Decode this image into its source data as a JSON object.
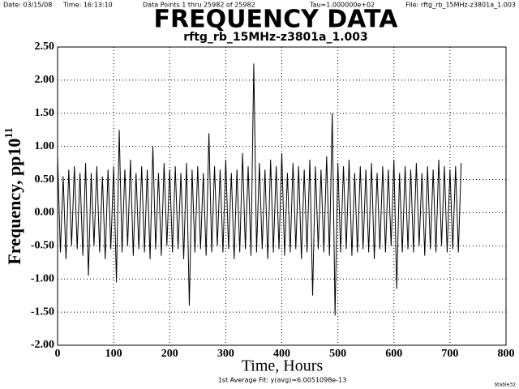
{
  "chart_data": {
    "type": "line",
    "header": {
      "date": "Date: 03/15/08",
      "time": "Time: 16:13:10",
      "points": "Data Points 1 thru 25982 of 25982",
      "tau": "Tau=1.000000e+02",
      "file": "File: rftg_rb_15MHz-z3801a_1.003"
    },
    "title": "FREQUENCY DATA",
    "subtitle": "rftg_rb_15MHz-z3801a_1.003",
    "ylabel": "Frequency, pp10",
    "ylabel_exponent": "11",
    "xlabel": "Time, Hours",
    "footer": "1st Average Fit: y(avg)=6.0051098e-13",
    "corner": "Stable32",
    "grid": true,
    "xlim": [
      0,
      800
    ],
    "xticks": [
      0,
      100,
      200,
      300,
      400,
      500,
      600,
      700,
      800
    ],
    "ylim": [
      -2.0,
      2.5
    ],
    "yticks": [
      {
        "value": -2.0,
        "label": "-2.00"
      },
      {
        "value": -1.5,
        "label": "-1.50"
      },
      {
        "value": -1.0,
        "label": "-1.00"
      },
      {
        "value": -0.5,
        "label": "-0.50"
      },
      {
        "value": 0,
        "label": "0.00"
      },
      {
        "value": 0.5,
        "label": "0.50"
      },
      {
        "value": 1.0,
        "label": "1.00"
      },
      {
        "value": 1.5,
        "label": "1.50"
      },
      {
        "value": 2.0,
        "label": "2.00"
      },
      {
        "value": 2.5,
        "label": "2.50"
      }
    ],
    "x": [
      0,
      5,
      10,
      15,
      20,
      25,
      30,
      35,
      40,
      45,
      50,
      55,
      60,
      65,
      70,
      75,
      80,
      85,
      90,
      95,
      100,
      105,
      110,
      115,
      120,
      125,
      130,
      135,
      140,
      145,
      150,
      155,
      160,
      165,
      170,
      175,
      180,
      185,
      190,
      195,
      200,
      205,
      210,
      215,
      220,
      225,
      230,
      235,
      240,
      245,
      250,
      255,
      260,
      265,
      270,
      275,
      280,
      285,
      290,
      295,
      300,
      305,
      310,
      315,
      320,
      325,
      330,
      335,
      340,
      345,
      350,
      355,
      360,
      365,
      370,
      375,
      380,
      385,
      390,
      395,
      400,
      405,
      410,
      415,
      420,
      425,
      430,
      435,
      440,
      445,
      450,
      455,
      460,
      465,
      470,
      475,
      480,
      485,
      490,
      495,
      500,
      505,
      510,
      515,
      520,
      525,
      530,
      535,
      540,
      545,
      550,
      555,
      560,
      565,
      570,
      575,
      580,
      585,
      590,
      595,
      600,
      605,
      610,
      615,
      620,
      625,
      630,
      635,
      640,
      645,
      650,
      655,
      660,
      665,
      670,
      675,
      680,
      685,
      690,
      695,
      700,
      705,
      710,
      715,
      720
    ],
    "series": [
      {
        "name": "Frequency",
        "color": "#000000",
        "values": [
          0.85,
          -0.6,
          0.55,
          -0.7,
          0.65,
          -0.5,
          0.7,
          -0.55,
          0.6,
          -0.65,
          0.75,
          -0.95,
          0.6,
          -0.5,
          0.7,
          -0.6,
          0.55,
          -0.7,
          0.65,
          -0.55,
          0.7,
          -1.05,
          1.25,
          -0.6,
          0.65,
          -0.5,
          0.8,
          -0.65,
          0.6,
          -0.55,
          0.7,
          -0.6,
          0.65,
          -0.7,
          1.0,
          -0.55,
          0.6,
          -0.65,
          0.75,
          -0.5,
          0.65,
          -0.6,
          0.7,
          -0.55,
          0.6,
          -0.7,
          0.75,
          -1.4,
          0.65,
          -0.6,
          0.7,
          -0.55,
          0.6,
          -0.65,
          1.2,
          -0.6,
          0.7,
          -0.5,
          0.65,
          -0.6,
          0.8,
          -0.55,
          0.6,
          -0.7,
          0.65,
          -0.6,
          0.9,
          -0.55,
          0.7,
          -0.65,
          2.25,
          -0.6,
          0.75,
          -0.55,
          0.65,
          -0.7,
          0.8,
          -0.6,
          0.7,
          -0.55,
          0.9,
          -0.65,
          0.6,
          -0.6,
          0.75,
          -0.55,
          0.7,
          -0.7,
          0.65,
          -0.6,
          0.8,
          -1.25,
          0.7,
          -0.55,
          0.65,
          -0.6,
          0.85,
          -0.65,
          1.5,
          -1.55,
          0.75,
          -0.6,
          0.7,
          -0.55,
          0.8,
          -0.65,
          0.6,
          -0.6,
          0.7,
          -0.55,
          0.65,
          -0.6,
          0.75,
          -0.7,
          0.6,
          -0.55,
          0.7,
          -0.6,
          0.65,
          -0.5,
          0.8,
          -1.15,
          0.6,
          -0.6,
          0.7,
          -0.55,
          0.65,
          -0.6,
          0.75,
          -0.5,
          0.6,
          -0.65,
          0.7,
          -0.55,
          0.65,
          -0.6,
          0.8,
          -0.5,
          0.7,
          -0.6,
          0.65,
          -0.55,
          0.7,
          -0.6,
          0.75
        ]
      }
    ]
  }
}
